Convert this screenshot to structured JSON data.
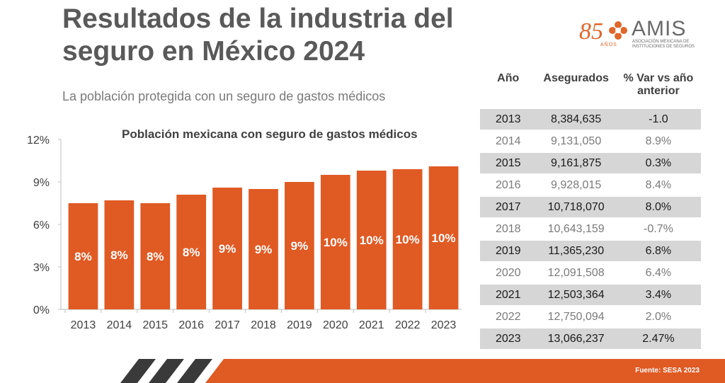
{
  "header": {
    "title_line1": "Resultados de la industria del",
    "title_line2": "seguro en México 2024",
    "subtitle": "La población protegida con un seguro de gastos médicos"
  },
  "logo": {
    "anniversary": "85",
    "anniversary_sub": "AÑOS",
    "brand": "AMIS",
    "brand_sub": "ASOCIACIÓN MEXICANA DE INSTITUCIONES DE SEGUROS"
  },
  "colors": {
    "bar": "#e05a24",
    "accent_dark": "#3a3a3a",
    "table_odd": "#d6d6d6"
  },
  "chart_data": {
    "type": "bar",
    "title": "Población mexicana con seguro de gastos médicos",
    "categories": [
      "2013",
      "2014",
      "2015",
      "2016",
      "2017",
      "2018",
      "2019",
      "2020",
      "2021",
      "2022",
      "2023"
    ],
    "values": [
      7.5,
      7.7,
      7.5,
      8.1,
      8.6,
      8.5,
      9.0,
      9.5,
      9.8,
      9.9,
      10.1
    ],
    "data_labels": [
      "8%",
      "8%",
      "8%",
      "8%",
      "9%",
      "9%",
      "9%",
      "10%",
      "10%",
      "10%",
      "10%"
    ],
    "ylim": [
      0,
      12
    ],
    "yticks": [
      0,
      3,
      6,
      9,
      12
    ],
    "ytick_labels": [
      "0%",
      "3%",
      "6%",
      "9%",
      "12%"
    ],
    "xlabel": "",
    "ylabel": "",
    "grid": false,
    "legend": "none"
  },
  "table": {
    "headers": [
      "Año",
      "Asegurados",
      "% Var vs año anterior"
    ],
    "rows": [
      {
        "year": "2013",
        "insured": "8,384,635",
        "var": "-1.0"
      },
      {
        "year": "2014",
        "insured": "9,131,050",
        "var": "8.9%"
      },
      {
        "year": "2015",
        "insured": "9,161,875",
        "var": "0.3%"
      },
      {
        "year": "2016",
        "insured": "9,928,015",
        "var": "8.4%"
      },
      {
        "year": "2017",
        "insured": "10,718,070",
        "var": "8.0%"
      },
      {
        "year": "2018",
        "insured": "10,643,159",
        "var": "-0.7%"
      },
      {
        "year": "2019",
        "insured": "11,365,230",
        "var": "6.8%"
      },
      {
        "year": "2020",
        "insured": "12,091,508",
        "var": "6.4%"
      },
      {
        "year": "2021",
        "insured": "12,503,364",
        "var": "3.4%"
      },
      {
        "year": "2022",
        "insured": "12,750,094",
        "var": "2.0%"
      },
      {
        "year": "2023",
        "insured": "13,066,237",
        "var": "2.47%"
      }
    ]
  },
  "footer": {
    "source": "Fuente: SESA 2023"
  }
}
